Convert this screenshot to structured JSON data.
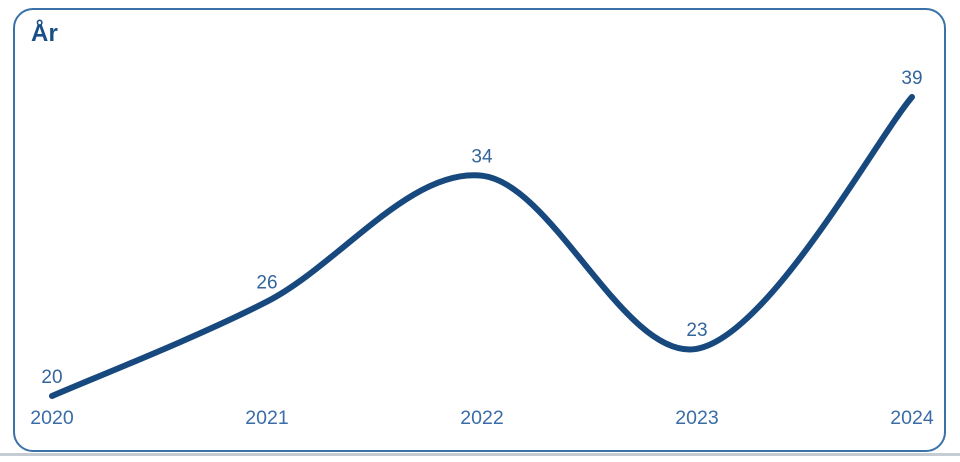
{
  "card": {
    "title": "År"
  },
  "chart_data": {
    "type": "line",
    "title": "År",
    "categories": [
      "2020",
      "2021",
      "2022",
      "2023",
      "2024"
    ],
    "values": [
      20,
      26,
      34,
      23,
      39
    ],
    "xlabel": "",
    "ylabel": "",
    "ylim": [
      20,
      39
    ],
    "grid": false,
    "legend": "none",
    "smooth": true,
    "data_labels_shown": true,
    "colors": {
      "line": "#17497e",
      "data_label": "#33659c",
      "axis_label": "#3a6ca8",
      "title": "#174f87",
      "card_border": "#3a72a8",
      "card_background": "#ffffff",
      "page_edge": "#c6ccd3"
    }
  }
}
